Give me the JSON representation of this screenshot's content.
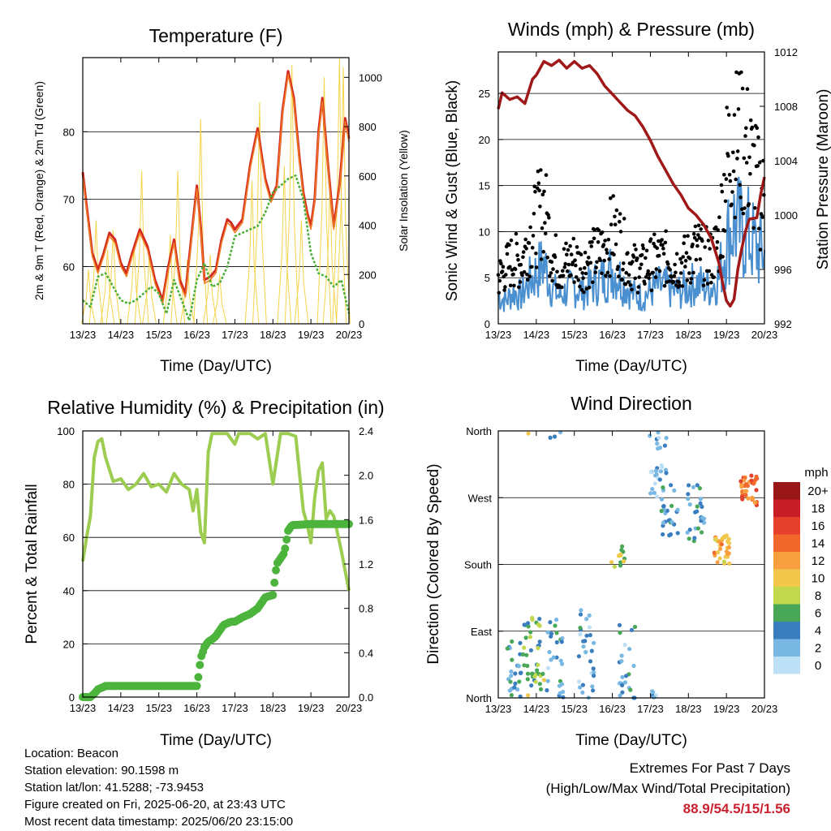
{
  "panels": {
    "temperature": {
      "title": "Temperature (F)",
      "ylabel_left": "2m & 9m T (Red, Orange) & 2m Td (Green)",
      "ylabel_right": "Solar Insolation (Yellow)",
      "xlabel": "Time (Day/UTC)"
    },
    "winds": {
      "title": "Winds (mph) & Pressure (mb)",
      "ylabel_left": "Sonic Wind & Gust (Blue, Black)",
      "ylabel_right": "Station Pressure (Maroon)",
      "xlabel": "Time (Day/UTC)"
    },
    "humidity": {
      "title": "Relative Humidity (%) & Precipitation (in)",
      "ylabel_left": "Percent & Total Rainfall",
      "xlabel": "Time (Day/UTC)"
    },
    "direction": {
      "title": "Wind Direction",
      "ylabel_left": "Direction (Colored By Speed)",
      "xlabel": "Time (Day/UTC)",
      "colorbar_title": "mph"
    }
  },
  "info": {
    "location": "Location: Beacon",
    "elevation": "Station elevation: 90.1598 m",
    "latlon": "Station lat/lon: 41.5288; -73.9453",
    "created": "Figure created on Fri, 2025-06-20, at 23:43 UTC",
    "timestamp": "Most recent data timestamp: 2025/06/20 23:15:00"
  },
  "extremes": {
    "title": "Extremes For Past 7 Days",
    "subtitle": "(High/Low/Max Wind/Total Precipitation)",
    "values": "88.9/54.5/15/1.56"
  },
  "colors": {
    "temp_red": "#d42a20",
    "temp_orange": "#f07a20",
    "dewpoint_green": "#4caf3a",
    "solar_yellow": "#f5d44a",
    "wind_blue": "#4a90d0",
    "gust_black": "#000000",
    "pressure_maroon": "#a01818",
    "rh_green": "#9ccc50",
    "precip_green": "#4cb43c"
  },
  "chart_data": [
    {
      "type": "line",
      "id": "temperature",
      "title": "Temperature (F)",
      "xlabel": "Time (Day/UTC)",
      "ylabel": "2m & 9m T (Red, Orange) & 2m Td (Green)",
      "y2label": "Solar Insolation (Yellow)",
      "x_ticks": [
        "13/23",
        "14/23",
        "15/23",
        "16/23",
        "17/23",
        "18/23",
        "19/23",
        "20/23"
      ],
      "xlim": [
        0,
        7
      ],
      "ylim": [
        51.5,
        91
      ],
      "y_ticks": [
        60,
        70,
        80
      ],
      "y2lim": [
        0,
        1080
      ],
      "y2_ticks": [
        0,
        200,
        400,
        600,
        800,
        1000
      ],
      "grid": true,
      "series": [
        {
          "name": "2m T",
          "color": "#d42a20",
          "x": [
            0,
            0.1,
            0.25,
            0.4,
            0.55,
            0.7,
            0.85,
            1.0,
            1.15,
            1.3,
            1.5,
            1.7,
            1.9,
            2.1,
            2.25,
            2.4,
            2.55,
            2.7,
            2.85,
            3.0,
            3.1,
            3.2,
            3.35,
            3.5,
            3.65,
            3.8,
            3.9,
            4.0,
            4.2,
            4.4,
            4.6,
            4.8,
            4.95,
            5.1,
            5.25,
            5.4,
            5.55,
            5.7,
            5.8,
            5.9,
            6.0,
            6.1,
            6.2,
            6.3,
            6.45,
            6.6,
            6.75,
            6.9,
            7.0
          ],
          "y": [
            74,
            69,
            62,
            59.5,
            62,
            65,
            64,
            60.5,
            59,
            62,
            65.5,
            63,
            58,
            55,
            60,
            64,
            58,
            56,
            64,
            72,
            66,
            58,
            58.5,
            59.5,
            64,
            67,
            66.5,
            65.5,
            67,
            75,
            80.5,
            73,
            70,
            72,
            83,
            89,
            85,
            76,
            71,
            68,
            66,
            70,
            80,
            85,
            75,
            66,
            72,
            82,
            79
          ]
        },
        {
          "name": "9m T",
          "color": "#f07a20",
          "x": [
            0,
            0.1,
            0.25,
            0.4,
            0.55,
            0.7,
            0.85,
            1.0,
            1.15,
            1.3,
            1.5,
            1.7,
            1.9,
            2.1,
            2.25,
            2.4,
            2.55,
            2.7,
            2.85,
            3.0,
            3.1,
            3.2,
            3.35,
            3.5,
            3.65,
            3.8,
            3.9,
            4.0,
            4.2,
            4.4,
            4.6,
            4.8,
            4.95,
            5.1,
            5.25,
            5.4,
            5.55,
            5.7,
            5.8,
            5.9,
            6.0,
            6.1,
            6.2,
            6.3,
            6.45,
            6.6,
            6.75,
            6.9,
            7.0
          ],
          "y": [
            73.5,
            68.5,
            61.5,
            59,
            61.5,
            64.5,
            63.5,
            60,
            58.5,
            61.5,
            65,
            62.5,
            57.5,
            54.5,
            59.5,
            63.5,
            57.5,
            55.5,
            63.5,
            71.5,
            65.5,
            57.5,
            58,
            59,
            63.5,
            66.5,
            66,
            65,
            66.5,
            74.5,
            80,
            72.5,
            69.5,
            71.5,
            82.5,
            88.5,
            84.5,
            75.5,
            70.5,
            67.5,
            65.5,
            69.5,
            79.5,
            84.5,
            74.5,
            65.5,
            71.5,
            81.5,
            78.5
          ]
        },
        {
          "name": "2m Td",
          "color": "#4caf3a",
          "x": [
            0,
            0.2,
            0.4,
            0.6,
            0.8,
            1.0,
            1.2,
            1.4,
            1.6,
            1.8,
            2.0,
            2.2,
            2.4,
            2.6,
            2.8,
            3.0,
            3.2,
            3.4,
            3.6,
            3.8,
            4.0,
            4.2,
            4.4,
            4.6,
            4.8,
            5.0,
            5.2,
            5.4,
            5.6,
            5.8,
            6.0,
            6.2,
            6.4,
            6.6,
            6.8,
            7.0
          ],
          "y": [
            55,
            54,
            58.5,
            59,
            57,
            55,
            54.5,
            55,
            56,
            57,
            56,
            53,
            58,
            55,
            52,
            58,
            60.5,
            57,
            57.5,
            60,
            64.5,
            65,
            65.5,
            66,
            68,
            71,
            72,
            73,
            73.5,
            70,
            62,
            59,
            58.5,
            57,
            58,
            53
          ]
        }
      ],
      "solar_peaks": {
        "x": [
          0.15,
          0.35,
          0.65,
          0.8,
          1.35,
          1.55,
          1.75,
          2.3,
          2.5,
          2.75,
          3.1,
          3.35,
          3.6,
          4.45,
          4.65,
          5.3,
          5.5,
          5.75,
          6.35,
          6.5,
          6.75,
          6.85
        ],
        "y": [
          220,
          420,
          300,
          380,
          320,
          620,
          280,
          360,
          620,
          260,
          830,
          280,
          200,
          580,
          900,
          640,
          1050,
          420,
          1000,
          560,
          1080,
          1040
        ]
      }
    },
    {
      "type": "line",
      "id": "winds",
      "title": "Winds (mph) & Pressure (mb)",
      "xlabel": "Time (Day/UTC)",
      "ylabel": "Sonic Wind & Gust (Blue, Black)",
      "y2label": "Station Pressure (Maroon)",
      "x_ticks": [
        "13/23",
        "14/23",
        "15/23",
        "16/23",
        "17/23",
        "18/23",
        "19/23",
        "20/23"
      ],
      "xlim": [
        0,
        7
      ],
      "ylim": [
        0,
        29.5
      ],
      "y_ticks": [
        0,
        5,
        10,
        15,
        20,
        25
      ],
      "y2lim": [
        992,
        1012
      ],
      "y2_ticks": [
        992,
        996,
        1000,
        1004,
        1008,
        1012
      ],
      "grid": true,
      "series": [
        {
          "name": "Station Pressure",
          "color": "#a01818",
          "x": [
            0,
            0.1,
            0.3,
            0.5,
            0.7,
            0.9,
            1.0,
            1.2,
            1.4,
            1.6,
            1.8,
            2.0,
            2.2,
            2.4,
            2.6,
            2.8,
            3.0,
            3.2,
            3.4,
            3.6,
            3.8,
            4.0,
            4.2,
            4.4,
            4.6,
            4.8,
            5.0,
            5.2,
            5.4,
            5.6,
            5.8,
            5.9,
            6.0,
            6.1,
            6.2,
            6.3,
            6.4,
            6.5,
            6.6,
            6.8,
            6.9,
            7.0
          ],
          "y": [
            1007.8,
            1009,
            1008.5,
            1008.7,
            1008.2,
            1010,
            1010.3,
            1011.3,
            1011,
            1011.4,
            1010.8,
            1011.3,
            1010.8,
            1011,
            1010.4,
            1009.5,
            1008.9,
            1008.3,
            1007.7,
            1007.3,
            1006.5,
            1005.5,
            1004.3,
            1003.3,
            1002.3,
            1001.5,
            1000.5,
            1000,
            999.3,
            998.3,
            996.5,
            995,
            993.7,
            993.3,
            993.8,
            996,
            997.5,
            998.8,
            999.7,
            999.8,
            1001.5,
            1002.8
          ]
        }
      ],
      "wind": {
        "x": [
          0,
          0.2,
          0.4,
          0.6,
          0.8,
          1.0,
          1.2,
          1.4,
          1.6,
          1.8,
          2.0,
          2.2,
          2.4,
          2.6,
          2.8,
          3.0,
          3.2,
          3.4,
          3.6,
          3.8,
          4.0,
          4.2,
          4.4,
          4.6,
          4.8,
          5.0,
          5.2,
          5.4,
          5.6,
          5.8,
          6.0,
          6.2,
          6.4,
          6.6,
          6.8,
          7.0
        ],
        "y": [
          3,
          2.5,
          3.5,
          3,
          4.5,
          5.5,
          6.5,
          4,
          3,
          3.5,
          4,
          3.5,
          4,
          4.5,
          5,
          6,
          5,
          4,
          3,
          3,
          3.5,
          4,
          4,
          3.5,
          3.5,
          4,
          4.5,
          4,
          4,
          5,
          9,
          11,
          10,
          9.5,
          8,
          7.5
        ]
      },
      "gust": {
        "x": [
          0,
          0.2,
          0.4,
          0.6,
          0.8,
          1.0,
          1.2,
          1.4,
          1.6,
          1.8,
          2.0,
          2.2,
          2.4,
          2.6,
          2.8,
          3.0,
          3.2,
          3.4,
          3.6,
          3.8,
          4.0,
          4.2,
          4.4,
          4.6,
          4.8,
          5.0,
          5.2,
          5.4,
          5.6,
          5.8,
          6.0,
          6.2,
          6.4,
          6.6,
          6.8,
          7.0
        ],
        "y": [
          5,
          6,
          7,
          6.5,
          9,
          11,
          13,
          8,
          6,
          6.5,
          7,
          6,
          7,
          7.5,
          8,
          10,
          9,
          7,
          6,
          6,
          6.5,
          7,
          7,
          6.5,
          6.5,
          7,
          8,
          7.5,
          7,
          9,
          17,
          21,
          20,
          18,
          15,
          13
        ]
      },
      "max_gust_mph": 27.3
    },
    {
      "type": "line",
      "id": "humidity",
      "title": "Relative Humidity (%) & Precipitation (in)",
      "xlabel": "Time (Day/UTC)",
      "ylabel": "Percent & Total Rainfall",
      "x_ticks": [
        "13/23",
        "14/23",
        "15/23",
        "16/23",
        "17/23",
        "18/23",
        "19/23",
        "20/23"
      ],
      "xlim": [
        0,
        7
      ],
      "ylim": [
        0,
        100
      ],
      "y_ticks": [
        0,
        20,
        40,
        60,
        80,
        100
      ],
      "y2lim": [
        0,
        2.4
      ],
      "y2_ticks": [
        "0.0",
        "0.4",
        "0.8",
        "1.2",
        "1.6",
        "2.0",
        "2.4"
      ],
      "grid": true,
      "series": [
        {
          "name": "Relative Humidity",
          "color": "#9ccc50",
          "x": [
            0,
            0.1,
            0.2,
            0.3,
            0.4,
            0.5,
            0.6,
            0.8,
            1.0,
            1.2,
            1.4,
            1.6,
            1.8,
            2.0,
            2.2,
            2.4,
            2.6,
            2.8,
            2.9,
            3.0,
            3.1,
            3.2,
            3.3,
            3.4,
            3.6,
            3.8,
            4.0,
            4.1,
            4.2,
            4.4,
            4.6,
            4.8,
            5.0,
            5.2,
            5.4,
            5.6,
            5.8,
            5.9,
            6.0,
            6.1,
            6.2,
            6.3,
            6.4,
            6.5,
            6.6,
            6.8,
            7.0
          ],
          "y": [
            51,
            60,
            68,
            90,
            96,
            97,
            90,
            81,
            82,
            78,
            80,
            84,
            79,
            80,
            77,
            84,
            80,
            78,
            70,
            78,
            62,
            58,
            92,
            99,
            99,
            99,
            95,
            99,
            99,
            99,
            97,
            99,
            80,
            99,
            99,
            98,
            70,
            65,
            58,
            75,
            85,
            88,
            67,
            70,
            68,
            55,
            40
          ]
        },
        {
          "name": "Total Precipitation",
          "color": "#4cb43c",
          "x": [
            0,
            0.2,
            0.3,
            0.4,
            0.6,
            1.0,
            2.0,
            3.0,
            3.05,
            3.1,
            3.2,
            3.3,
            3.4,
            3.5,
            3.7,
            3.9,
            4.0,
            4.2,
            4.4,
            4.6,
            4.8,
            5.0,
            5.1,
            5.3,
            5.4,
            5.5,
            6.0,
            6.5,
            7.0
          ],
          "y": [
            0,
            0,
            0.03,
            0.07,
            0.1,
            0.1,
            0.1,
            0.1,
            0.2,
            0.35,
            0.45,
            0.5,
            0.52,
            0.55,
            0.65,
            0.68,
            0.68,
            0.72,
            0.75,
            0.8,
            0.9,
            0.92,
            1.2,
            1.3,
            1.5,
            1.55,
            1.56,
            1.56,
            1.56
          ]
        }
      ]
    },
    {
      "type": "scatter",
      "id": "direction",
      "title": "Wind Direction",
      "xlabel": "Time (Day/UTC)",
      "ylabel": "Direction (Colored By Speed)",
      "x_ticks": [
        "13/23",
        "14/23",
        "15/23",
        "16/23",
        "17/23",
        "18/23",
        "19/23",
        "20/23"
      ],
      "xlim": [
        0,
        7
      ],
      "y_ticks": [
        "North",
        "East",
        "South",
        "West",
        "North"
      ],
      "ylim": [
        0,
        360
      ],
      "grid": true,
      "colorbar": {
        "title": "mph",
        "labels": [
          "20+",
          "18",
          "16",
          "14",
          "12",
          "10",
          "8",
          "6",
          "4",
          "2",
          "0"
        ],
        "colors": [
          "#991717",
          "#c81e28",
          "#e4402c",
          "#f2682c",
          "#f8a040",
          "#f2c84c",
          "#c2d84c",
          "#48a858",
          "#3a7ec0",
          "#7ab8e4",
          "#bee0f6"
        ]
      },
      "clusters": [
        {
          "x": 0.45,
          "dir": 40,
          "spread": 40,
          "speed": 4,
          "n": 26
        },
        {
          "x": 0.9,
          "dir": 60,
          "spread": 50,
          "speed": 6,
          "n": 36
        },
        {
          "x": 1.0,
          "dir": 20,
          "spread": 25,
          "speed": 8,
          "n": 8
        },
        {
          "x": 1.5,
          "dir": 50,
          "spread": 60,
          "speed": 3,
          "n": 30
        },
        {
          "x": 2.3,
          "dir": 60,
          "spread": 60,
          "speed": 3,
          "n": 30
        },
        {
          "x": 3.15,
          "dir": 190,
          "spread": 15,
          "speed": 8,
          "n": 12
        },
        {
          "x": 3.4,
          "dir": 50,
          "spread": 50,
          "speed": 3,
          "n": 24
        },
        {
          "x": 4.2,
          "dir": 320,
          "spread": 50,
          "speed": 2,
          "n": 34
        },
        {
          "x": 4.5,
          "dir": 250,
          "spread": 40,
          "speed": 4,
          "n": 26
        },
        {
          "x": 5.2,
          "dir": 250,
          "spread": 40,
          "speed": 4,
          "n": 26
        },
        {
          "x": 5.9,
          "dir": 200,
          "spread": 20,
          "speed": 11,
          "n": 34
        },
        {
          "x": 6.6,
          "dir": 280,
          "spread": 20,
          "speed": 14,
          "n": 36
        }
      ]
    }
  ]
}
